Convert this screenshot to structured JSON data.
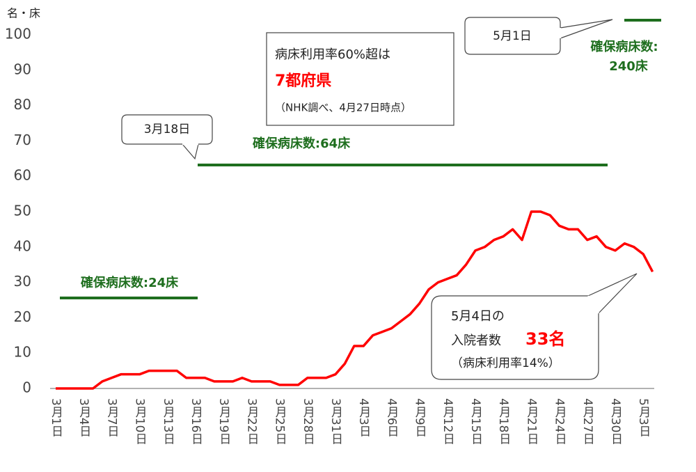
{
  "chart_data": {
    "type": "line",
    "y_unit": "名・床",
    "categories": [
      "3月1日",
      null,
      null,
      "3月4日",
      null,
      null,
      "3月7日",
      null,
      null,
      "3月10日",
      null,
      null,
      "3月13日",
      null,
      null,
      "3月16日",
      null,
      null,
      "3月19日",
      null,
      null,
      "3月22日",
      null,
      null,
      "3月25日",
      null,
      null,
      "3月28日",
      null,
      null,
      "3月31日",
      null,
      null,
      "4月3日",
      null,
      null,
      "4月6日",
      null,
      null,
      "4月9日",
      null,
      null,
      "4月12日",
      null,
      null,
      "4月15日",
      null,
      null,
      "4月18日",
      null,
      null,
      "4月21日",
      null,
      null,
      "4月24日",
      null,
      null,
      "4月27日",
      null,
      null,
      "4月30日",
      null,
      null,
      "5月3日",
      null
    ],
    "series": [
      {
        "color": "#ff0000",
        "values": [
          0,
          0,
          0,
          0,
          0,
          2,
          3,
          4,
          4,
          4,
          5,
          5,
          5,
          5,
          3,
          3,
          3,
          2,
          2,
          2,
          3,
          2,
          2,
          2,
          1,
          1,
          1,
          3,
          3,
          3,
          4,
          7,
          12,
          12,
          15,
          16,
          17,
          19,
          21,
          24,
          28,
          30,
          31,
          32,
          35,
          39,
          40,
          42,
          43,
          45,
          42,
          50,
          50,
          49,
          46,
          45,
          45,
          42,
          43,
          40,
          39,
          41,
          40,
          38,
          33
        ]
      }
    ],
    "ylim": [
      0,
      100
    ],
    "yticks": [
      0,
      10,
      20,
      30,
      40,
      50,
      60,
      70,
      80,
      90,
      100
    ],
    "bed_color": "#1e6e1e",
    "bed_labels": [
      [
        "確保病床数:24床"
      ],
      [
        "確保病床数:64床"
      ],
      [
        "確保病床数:",
        "240床"
      ]
    ],
    "callouts": [
      [
        "3月18日"
      ],
      [
        "5月1日"
      ],
      [
        "病床利用率60%超は",
        "7都府県",
        "（NHK調べ、4月27日時点）"
      ],
      [
        "5月4日の",
        "入院者数",
        "33名",
        "（病床利用率14%）"
      ]
    ]
  }
}
